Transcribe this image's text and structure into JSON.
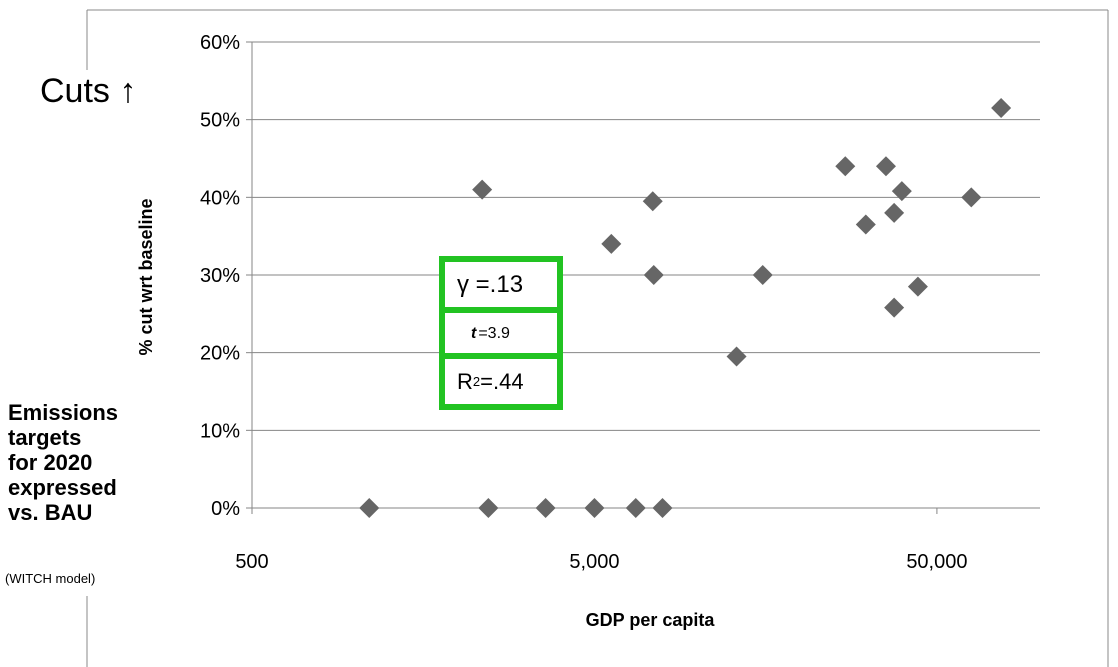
{
  "side_panel": {
    "cuts_label": "Cuts ↑",
    "title_lines": [
      "Emissions",
      "targets",
      "for 2020",
      "expressed",
      "vs. BAU"
    ],
    "subtitle": "(WITCH model)"
  },
  "stats": {
    "gamma": "γ =.13",
    "t_symbol": "t",
    "t_value": "=3.9",
    "r2_base": "R",
    "r2_exp": "2",
    "r2_value": "=.44"
  },
  "chart_data": {
    "type": "scatter",
    "xlabel": "GDP per capita",
    "ylabel": "% cut wrt baseline",
    "xscale": "log",
    "xlim": [
      500,
      100000
    ],
    "ylim": [
      0,
      0.6
    ],
    "x_ticks": [
      500,
      5000,
      50000
    ],
    "x_tick_labels": [
      "500",
      "5,000",
      "50,000"
    ],
    "y_ticks": [
      0,
      0.1,
      0.2,
      0.3,
      0.4,
      0.5,
      0.6
    ],
    "y_tick_labels": [
      "0%",
      "10%",
      "20%",
      "30%",
      "40%",
      "50%",
      "60%"
    ],
    "grid": "horizontal",
    "marker": "diamond",
    "marker_color": "#666666",
    "points": [
      {
        "x": 1100,
        "y": 0.0
      },
      {
        "x": 2350,
        "y": 0.41
      },
      {
        "x": 2450,
        "y": 0.0
      },
      {
        "x": 3600,
        "y": 0.0
      },
      {
        "x": 5000,
        "y": 0.0
      },
      {
        "x": 5600,
        "y": 0.34
      },
      {
        "x": 6600,
        "y": 0.0
      },
      {
        "x": 7400,
        "y": 0.395
      },
      {
        "x": 7450,
        "y": 0.3
      },
      {
        "x": 7900,
        "y": 0.0
      },
      {
        "x": 13000,
        "y": 0.195
      },
      {
        "x": 15500,
        "y": 0.3
      },
      {
        "x": 27000,
        "y": 0.44
      },
      {
        "x": 31000,
        "y": 0.365
      },
      {
        "x": 35500,
        "y": 0.44
      },
      {
        "x": 37500,
        "y": 0.38
      },
      {
        "x": 37500,
        "y": 0.258
      },
      {
        "x": 39500,
        "y": 0.408
      },
      {
        "x": 44000,
        "y": 0.285
      },
      {
        "x": 63000,
        "y": 0.4
      },
      {
        "x": 77000,
        "y": 0.515
      }
    ]
  }
}
